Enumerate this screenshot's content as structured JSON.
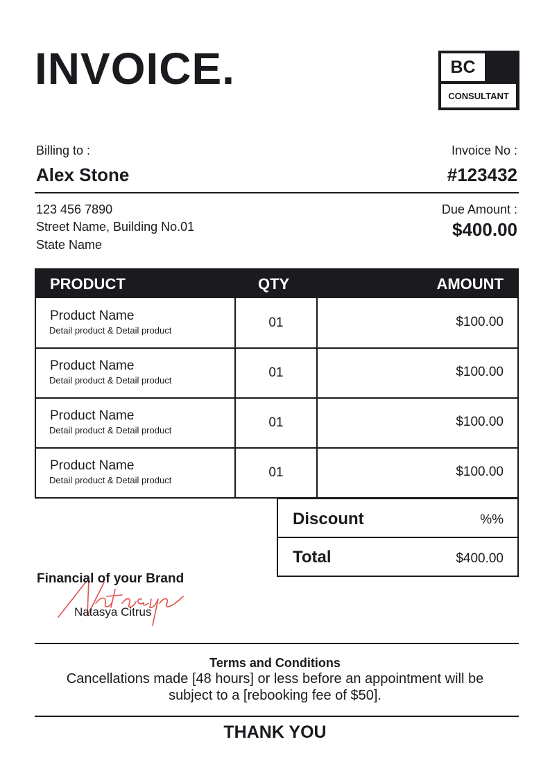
{
  "header": {
    "title": "INVOICE.",
    "logo": {
      "initials": "BC",
      "subtitle": "CONSULTANT"
    }
  },
  "billing": {
    "label": "Billing to :",
    "name": "Alex Stone",
    "phone": "123 456 7890",
    "address": "Street Name, Building No.01",
    "state": "State Name"
  },
  "invoice": {
    "label": "Invoice No :",
    "number": "#123432",
    "due_label": "Due Amount :",
    "due_amount": "$400.00"
  },
  "table": {
    "headers": [
      "PRODUCT",
      "QTY",
      "AMOUNT"
    ],
    "rows": [
      {
        "name": "Product Name",
        "detail": "Detail product & Detail product",
        "qty": "01",
        "amount": "$100.00"
      },
      {
        "name": "Product Name",
        "detail": "Detail product & Detail product",
        "qty": "01",
        "amount": "$100.00"
      },
      {
        "name": "Product Name",
        "detail": "Detail product & Detail product",
        "qty": "01",
        "amount": "$100.00"
      },
      {
        "name": "Product Name",
        "detail": "Detail product & Detail product",
        "qty": "01",
        "amount": "$100.00"
      }
    ]
  },
  "summary": {
    "discount_label": "Discount",
    "discount_value": "%%",
    "total_label": "Total",
    "total_value": "$400.00"
  },
  "signature": {
    "tagline": "Financial of your Brand",
    "script": "Natasya",
    "name": "Natasya Citrus",
    "color": "#e0504a"
  },
  "terms": {
    "title": "Terms and Conditions",
    "line1": "Cancellations made [48 hours] or less before an appointment will be",
    "line2": "subject to a [rebooking fee of $50]."
  },
  "footer": {
    "thanks": "THANK YOU"
  }
}
